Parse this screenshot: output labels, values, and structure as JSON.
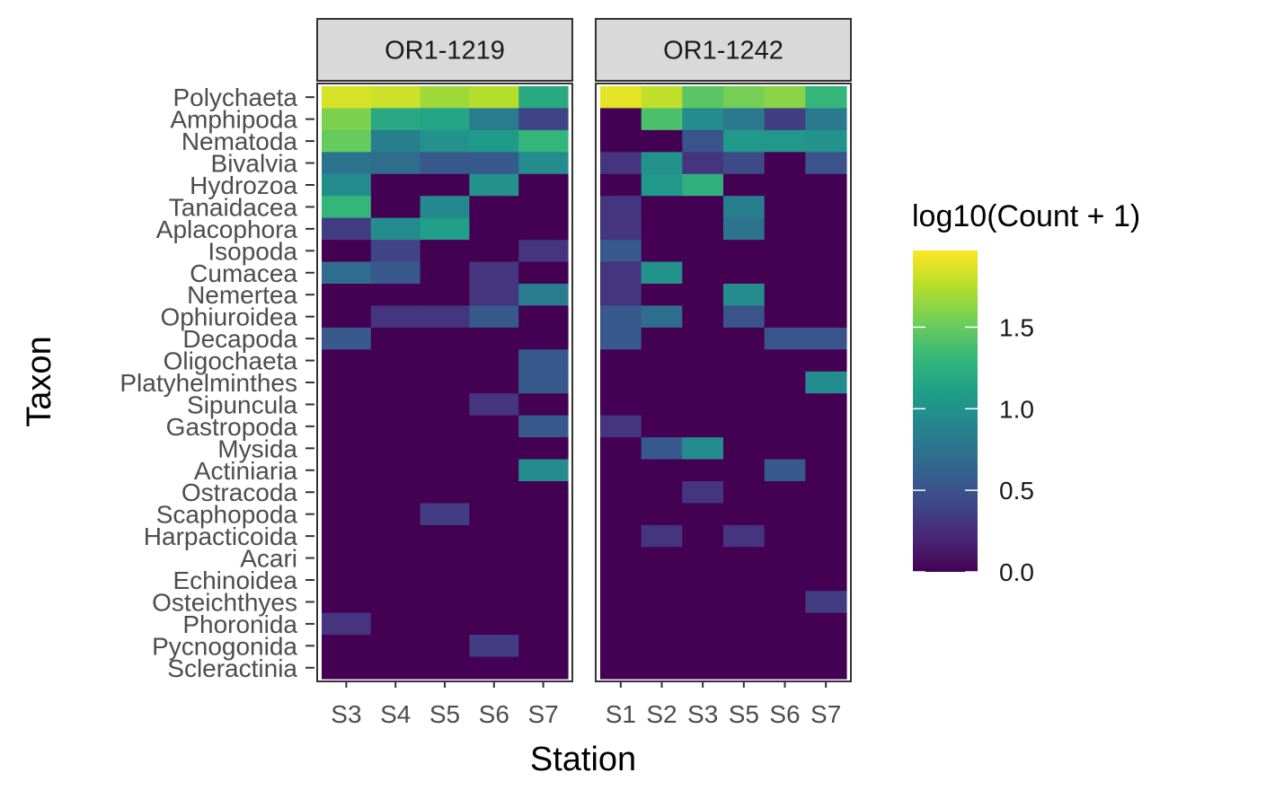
{
  "chart_data": {
    "type": "heatmap",
    "xlabel": "Station",
    "ylabel": "Taxon",
    "taxa": [
      "Polychaeta",
      "Amphipoda",
      "Nematoda",
      "Bivalvia",
      "Hydrozoa",
      "Tanaidacea",
      "Aplacophora",
      "Isopoda",
      "Cumacea",
      "Nemertea",
      "Ophiuroidea",
      "Decapoda",
      "Oligochaeta",
      "Platyhelminthes",
      "Sipuncula",
      "Gastropoda",
      "Mysida",
      "Actiniaria",
      "Ostracoda",
      "Scaphopoda",
      "Harpacticoida",
      "Acari",
      "Echinoidea",
      "Osteichthyes",
      "Phoronida",
      "Pycnogonida",
      "Scleractinia"
    ],
    "legend": {
      "title": "log10(Count + 1)",
      "range": [
        0,
        1.97
      ],
      "ticks": [
        0.0,
        0.5,
        1.0,
        1.5
      ],
      "tick_labels": [
        "0.0",
        "0.5",
        "1.0",
        "1.5"
      ],
      "palette": [
        "#440154",
        "#482878",
        "#3e4a89",
        "#31688e",
        "#26828e",
        "#1f9e89",
        "#35b779",
        "#6ece58",
        "#b5de2b",
        "#fde725"
      ]
    },
    "panels": [
      {
        "title": "OR1-1219",
        "stations": [
          "S3",
          "S4",
          "S5",
          "S6",
          "S7"
        ],
        "values": [
          [
            1.85,
            1.82,
            1.68,
            1.75,
            1.2
          ],
          [
            1.58,
            1.18,
            1.15,
            0.82,
            0.4
          ],
          [
            1.5,
            0.85,
            1.0,
            1.08,
            1.3
          ],
          [
            0.75,
            0.7,
            0.55,
            0.55,
            0.95
          ],
          [
            0.95,
            0.0,
            0.0,
            1.0,
            0.0
          ],
          [
            1.3,
            0.0,
            0.92,
            0.0,
            0.0
          ],
          [
            0.35,
            0.95,
            1.1,
            0.0,
            0.0
          ],
          [
            0.0,
            0.4,
            0.0,
            0.0,
            0.3
          ],
          [
            0.7,
            0.55,
            0.0,
            0.3,
            0.0
          ],
          [
            0.0,
            0.0,
            0.0,
            0.3,
            0.82
          ],
          [
            0.0,
            0.3,
            0.3,
            0.55,
            0.0
          ],
          [
            0.55,
            0.0,
            0.0,
            0.0,
            0.0
          ],
          [
            0.0,
            0.0,
            0.0,
            0.0,
            0.55
          ],
          [
            0.0,
            0.0,
            0.0,
            0.0,
            0.55
          ],
          [
            0.0,
            0.0,
            0.0,
            0.3,
            0.0
          ],
          [
            0.0,
            0.0,
            0.0,
            0.0,
            0.55
          ],
          [
            0.0,
            0.0,
            0.0,
            0.0,
            0.0
          ],
          [
            0.0,
            0.0,
            0.0,
            0.0,
            0.95
          ],
          [
            0.0,
            0.0,
            0.0,
            0.0,
            0.0
          ],
          [
            0.0,
            0.0,
            0.35,
            0.0,
            0.0
          ],
          [
            0.0,
            0.0,
            0.0,
            0.0,
            0.0
          ],
          [
            0.0,
            0.0,
            0.0,
            0.0,
            0.0
          ],
          [
            0.0,
            0.0,
            0.0,
            0.0,
            0.0
          ],
          [
            0.0,
            0.0,
            0.0,
            0.0,
            0.0
          ],
          [
            0.3,
            0.0,
            0.0,
            0.0,
            0.0
          ],
          [
            0.0,
            0.0,
            0.0,
            0.35,
            0.0
          ],
          [
            0.0,
            0.0,
            0.0,
            0.0,
            0.0
          ]
        ]
      },
      {
        "title": "OR1-1242",
        "stations": [
          "S1",
          "S2",
          "S3",
          "S5",
          "S6",
          "S7"
        ],
        "values": [
          [
            1.9,
            1.78,
            1.45,
            1.55,
            1.62,
            1.3
          ],
          [
            0.0,
            1.4,
            0.95,
            0.8,
            0.35,
            0.8
          ],
          [
            0.0,
            0.0,
            0.5,
            1.05,
            1.05,
            1.0
          ],
          [
            0.3,
            1.0,
            0.3,
            0.45,
            0.0,
            0.5
          ],
          [
            0.0,
            1.05,
            1.25,
            0.0,
            0.0,
            0.0
          ],
          [
            0.3,
            0.0,
            0.0,
            0.85,
            0.0,
            0.0
          ],
          [
            0.3,
            0.0,
            0.0,
            0.75,
            0.0,
            0.0
          ],
          [
            0.55,
            0.0,
            0.0,
            0.0,
            0.0,
            0.0
          ],
          [
            0.3,
            1.0,
            0.0,
            0.0,
            0.0,
            0.0
          ],
          [
            0.3,
            0.0,
            0.0,
            0.95,
            0.0,
            0.0
          ],
          [
            0.55,
            0.7,
            0.0,
            0.5,
            0.0,
            0.0
          ],
          [
            0.55,
            0.0,
            0.0,
            0.0,
            0.5,
            0.5
          ],
          [
            0.0,
            0.0,
            0.0,
            0.0,
            0.0,
            0.0
          ],
          [
            0.0,
            0.0,
            0.0,
            0.0,
            0.0,
            0.95
          ],
          [
            0.0,
            0.0,
            0.0,
            0.0,
            0.0,
            0.0
          ],
          [
            0.3,
            0.0,
            0.0,
            0.0,
            0.0,
            0.0
          ],
          [
            0.0,
            0.55,
            0.95,
            0.0,
            0.0,
            0.0
          ],
          [
            0.0,
            0.0,
            0.0,
            0.0,
            0.55,
            0.0
          ],
          [
            0.0,
            0.0,
            0.3,
            0.0,
            0.0,
            0.0
          ],
          [
            0.0,
            0.0,
            0.0,
            0.0,
            0.0,
            0.0
          ],
          [
            0.0,
            0.3,
            0.0,
            0.3,
            0.0,
            0.0
          ],
          [
            0.0,
            0.0,
            0.0,
            0.0,
            0.0,
            0.0
          ],
          [
            0.0,
            0.0,
            0.0,
            0.0,
            0.0,
            0.0
          ],
          [
            0.0,
            0.0,
            0.0,
            0.0,
            0.0,
            0.35
          ],
          [
            0.0,
            0.0,
            0.0,
            0.0,
            0.0,
            0.0
          ],
          [
            0.0,
            0.0,
            0.0,
            0.0,
            0.0,
            0.0
          ],
          [
            0.0,
            0.0,
            0.0,
            0.0,
            0.0,
            0.0
          ]
        ]
      }
    ]
  }
}
